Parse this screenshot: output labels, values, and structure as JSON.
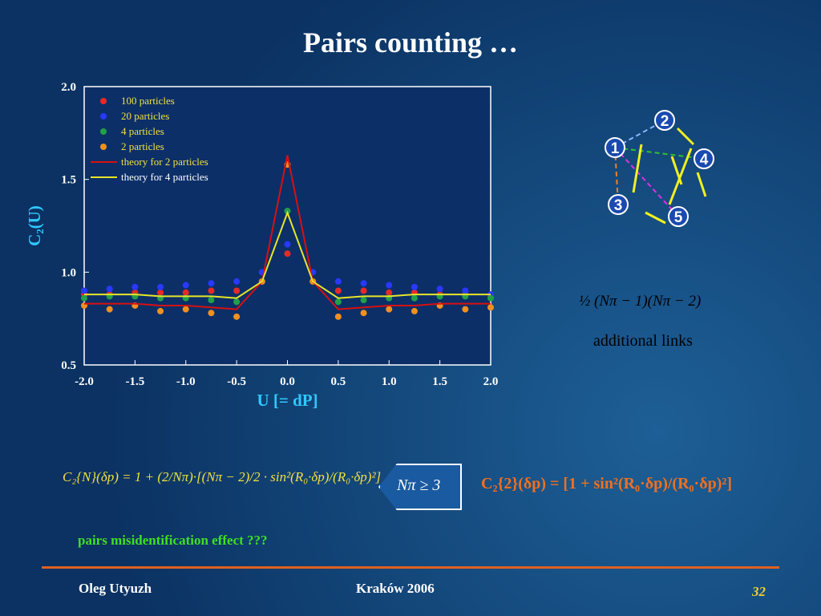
{
  "title": "Pairs counting …",
  "chart_data": {
    "type": "scatter",
    "xlabel": "U [= dP]",
    "ylabel": "C₂(U)",
    "x": [
      -2,
      -1.75,
      -1.5,
      -1.25,
      -1,
      -0.75,
      -0.5,
      -0.25,
      0,
      0.25,
      0.5,
      0.75,
      1,
      1.25,
      1.5,
      1.75,
      2
    ],
    "xlim": [
      -2,
      2
    ],
    "ylim": [
      0.5,
      2
    ],
    "xticks": [
      {
        "value": -2,
        "label": "-2.0"
      },
      -1.5,
      {
        "value": -1,
        "label": "-1.0"
      },
      -0.5,
      {
        "value": 0,
        "label": "0.0"
      },
      0.5,
      {
        "value": 1,
        "label": "1.0"
      },
      1.5,
      {
        "value": 2,
        "label": "2.0"
      }
    ],
    "yticks": [
      0.5,
      {
        "value": 1,
        "label": "1.0"
      },
      1.5,
      {
        "value": 2,
        "label": "2.0"
      }
    ],
    "series": [
      {
        "name": "100 particles",
        "color": "#e82828",
        "style": "points",
        "values": [
          0.88,
          0.88,
          0.89,
          0.89,
          0.89,
          0.9,
          0.9,
          0.95,
          1.1,
          0.95,
          0.9,
          0.9,
          0.89,
          0.89,
          0.88,
          0.88,
          0.87
        ]
      },
      {
        "name": "20 particles",
        "color": "#2838ff",
        "style": "points",
        "values": [
          0.9,
          0.91,
          0.92,
          0.92,
          0.93,
          0.94,
          0.95,
          1.0,
          1.15,
          1.0,
          0.95,
          0.94,
          0.93,
          0.92,
          0.91,
          0.9,
          0.88
        ]
      },
      {
        "name": "4 particles",
        "color": "#22a048",
        "style": "points",
        "values": [
          0.86,
          0.87,
          0.87,
          0.86,
          0.86,
          0.85,
          0.84,
          0.95,
          1.33,
          0.95,
          0.84,
          0.85,
          0.86,
          0.86,
          0.87,
          0.87,
          0.86
        ]
      },
      {
        "name": "2 particles",
        "color": "#f09020",
        "style": "points",
        "values": [
          0.82,
          0.8,
          0.82,
          0.79,
          0.8,
          0.78,
          0.76,
          0.95,
          1.58,
          0.95,
          0.76,
          0.78,
          0.8,
          0.79,
          0.82,
          0.8,
          0.81
        ]
      },
      {
        "name": "theory for 2 particles",
        "color": "#d81010",
        "style": "line",
        "values": [
          0.83,
          0.83,
          0.83,
          0.82,
          0.82,
          0.81,
          0.8,
          0.95,
          1.63,
          0.95,
          0.8,
          0.81,
          0.82,
          0.82,
          0.83,
          0.83,
          0.83
        ]
      },
      {
        "name": "theory for 4 particles",
        "color": "#e6e628",
        "style": "line",
        "values": [
          0.88,
          0.88,
          0.88,
          0.87,
          0.87,
          0.87,
          0.86,
          0.95,
          1.32,
          0.95,
          0.86,
          0.87,
          0.87,
          0.88,
          0.88,
          0.88,
          0.88
        ]
      }
    ]
  },
  "diagram": {
    "nodes": [
      {
        "label": "1"
      },
      {
        "label": "2"
      },
      {
        "label": "3"
      },
      {
        "label": "4"
      },
      {
        "label": "5"
      }
    ],
    "formula": "½ (Nπ − 1)(Nπ − 2)",
    "note": "additional links"
  },
  "formulas": {
    "general": "C₂{N}(δp) = 1 + (2/Nπ)·[(Nπ − 2)/2 · sin²(R₀·δp)/(R₀·δp)²]",
    "condition": "Nπ ≥ 3",
    "two": "C₂{2}(δp) = [1 + sin²(R₀·δp)/(R₀·δp)²]"
  },
  "remark": "pairs misidentification effect ???",
  "footer": {
    "author": "Oleg Utyuzh",
    "event": "Kraków 2006",
    "page": "32"
  }
}
